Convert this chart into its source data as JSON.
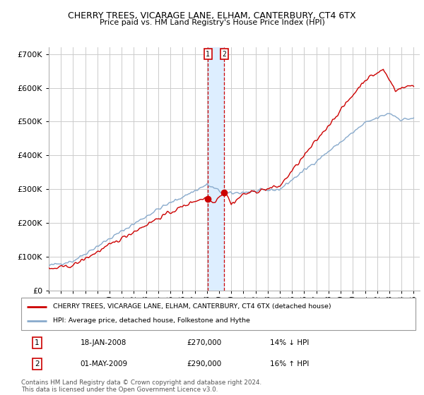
{
  "title": "CHERRY TREES, VICARAGE LANE, ELHAM, CANTERBURY, CT4 6TX",
  "subtitle": "Price paid vs. HM Land Registry's House Price Index (HPI)",
  "ylabel_ticks": [
    "£0",
    "£100K",
    "£200K",
    "£300K",
    "£400K",
    "£500K",
    "£600K",
    "£700K"
  ],
  "ytick_values": [
    0,
    100000,
    200000,
    300000,
    400000,
    500000,
    600000,
    700000
  ],
  "ylim": [
    0,
    720000
  ],
  "xlim_start": 1995.0,
  "xlim_end": 2025.5,
  "xticks": [
    1995,
    1996,
    1997,
    1998,
    1999,
    2000,
    2001,
    2002,
    2003,
    2004,
    2005,
    2006,
    2007,
    2008,
    2009,
    2010,
    2011,
    2012,
    2013,
    2014,
    2015,
    2016,
    2017,
    2018,
    2019,
    2020,
    2021,
    2022,
    2023,
    2024,
    2025
  ],
  "red_line_color": "#cc0000",
  "blue_line_color": "#88aacc",
  "vband_color": "#ddeeff",
  "marker1_year": 2008.05,
  "marker2_year": 2009.38,
  "marker1_price": 270000,
  "marker2_price": 290000,
  "legend_red": "CHERRY TREES, VICARAGE LANE, ELHAM, CANTERBURY, CT4 6TX (detached house)",
  "legend_blue": "HPI: Average price, detached house, Folkestone and Hythe",
  "table_row1": [
    "1",
    "18-JAN-2008",
    "£270,000",
    "14% ↓ HPI"
  ],
  "table_row2": [
    "2",
    "01-MAY-2009",
    "£290,000",
    "16% ↑ HPI"
  ],
  "footnote1": "Contains HM Land Registry data © Crown copyright and database right 2024.",
  "footnote2": "This data is licensed under the Open Government Licence v3.0.",
  "background_color": "#ffffff",
  "grid_color": "#cccccc"
}
